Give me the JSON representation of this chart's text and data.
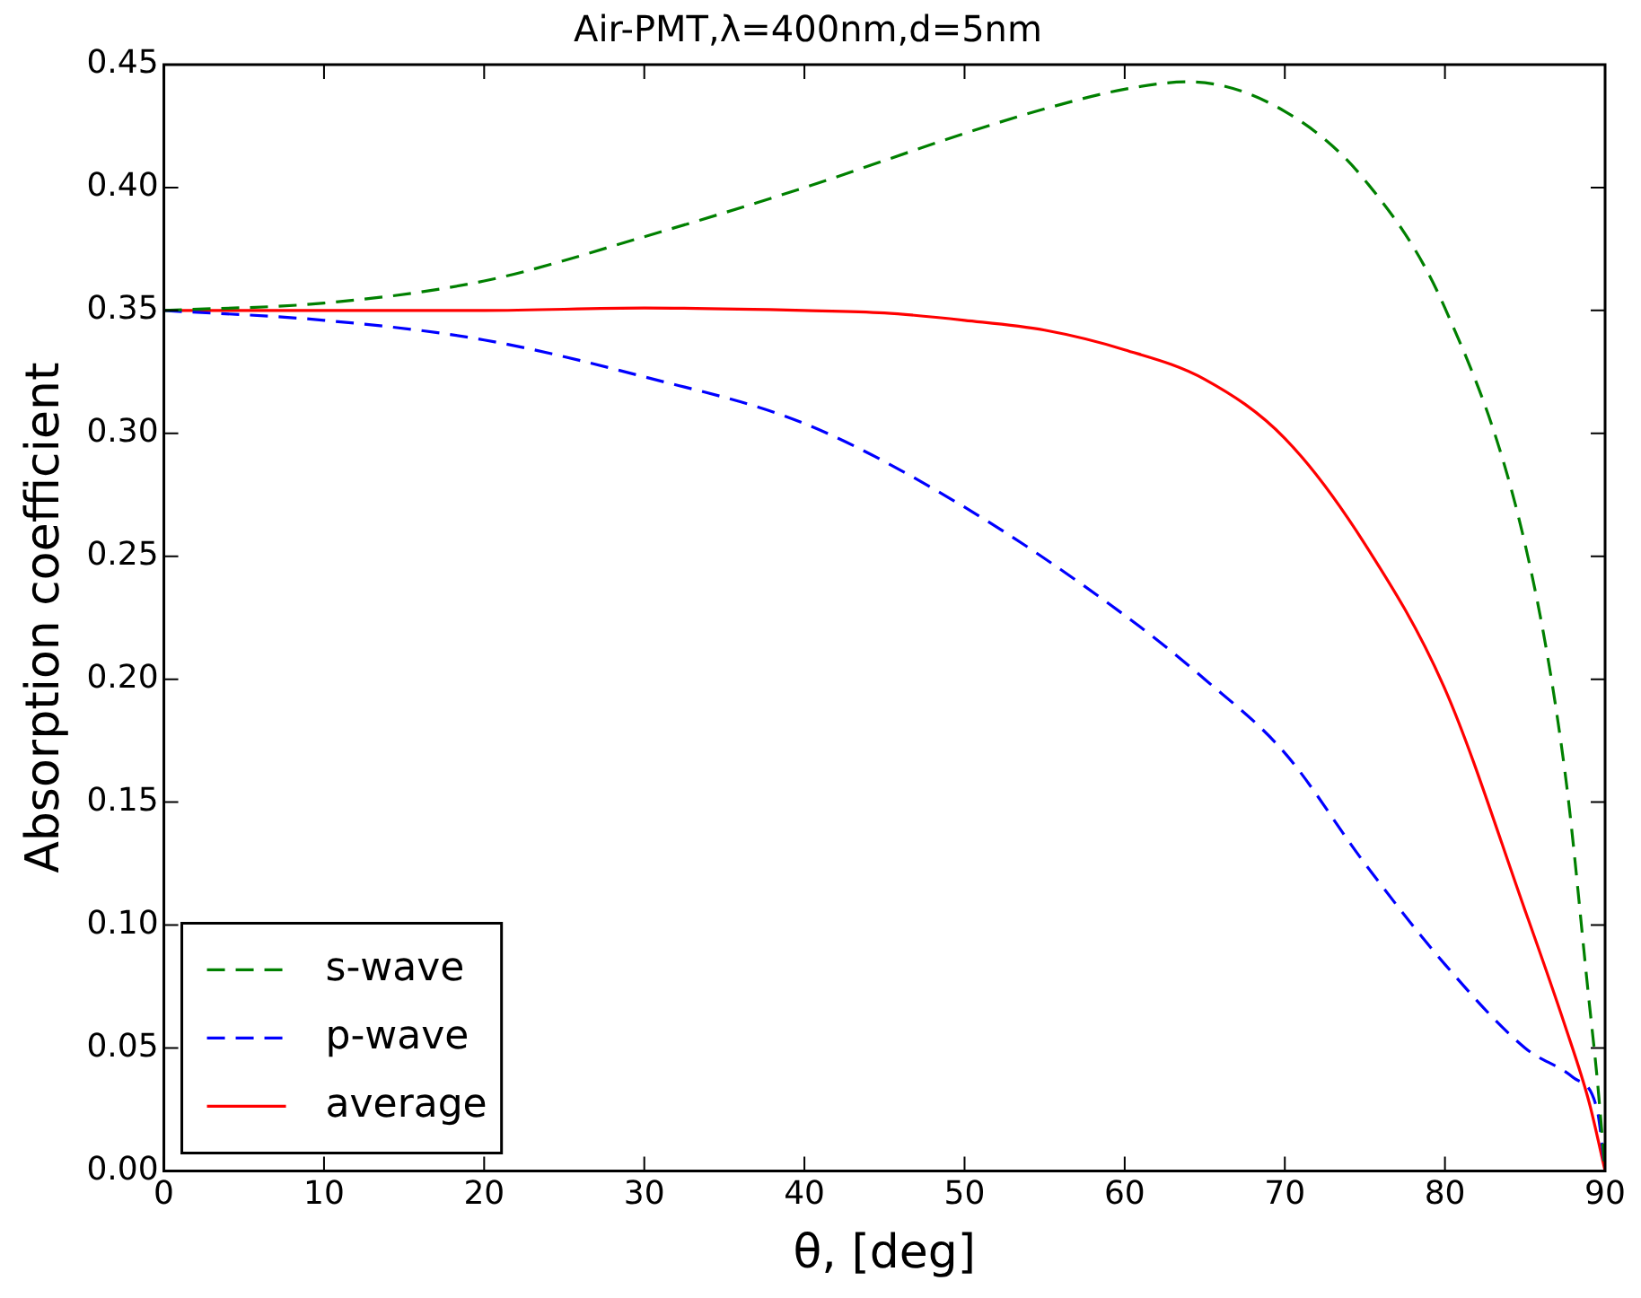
{
  "chart_data": {
    "type": "line",
    "title": "Air-PMT,λ=400nm,d=5nm",
    "xlabel": "θ, [deg]",
    "ylabel": "Absorption coefficient",
    "xlim": [
      0,
      90
    ],
    "xticks": [
      0,
      10,
      20,
      30,
      40,
      50,
      60,
      70,
      80,
      90
    ],
    "ylim": [
      0,
      0.45
    ],
    "yticks": [
      {
        "value": 0,
        "label": "0.00"
      },
      {
        "value": 0.05,
        "label": "0.05"
      },
      {
        "value": 0.1,
        "label": "0.10"
      },
      {
        "value": 0.15,
        "label": "0.15"
      },
      {
        "value": 0.2,
        "label": "0.20"
      },
      {
        "value": 0.25,
        "label": "0.25"
      },
      {
        "value": 0.3,
        "label": "0.30"
      },
      {
        "value": 0.35,
        "label": "0.35"
      },
      {
        "value": 0.4,
        "label": "0.40"
      },
      {
        "value": 0.45,
        "label": "0.45"
      }
    ],
    "grid": false,
    "legend": "bottom left",
    "marker": "none",
    "series": [
      {
        "name": "s-wave",
        "color": "#008000",
        "line_style": "dashed",
        "x": [
          0,
          10,
          20,
          30,
          40,
          50,
          55,
          60,
          64,
          70,
          75,
          80,
          85,
          87.5,
          89,
          89.5,
          90
        ],
        "values": [
          0.35,
          0.353,
          0.362,
          0.38,
          0.4,
          0.422,
          0.432,
          0.44,
          0.443,
          0.431,
          0.403,
          0.351,
          0.255,
          0.162,
          0.069,
          0.038,
          0
        ]
      },
      {
        "name": "p-wave",
        "color": "#0000ff",
        "line_style": "dashed",
        "x": [
          0,
          10,
          20,
          30,
          40,
          50,
          60,
          65,
          70,
          75,
          80,
          85,
          88,
          89.5,
          90
        ],
        "values": [
          0.35,
          0.346,
          0.338,
          0.323,
          0.304,
          0.27,
          0.226,
          0.2,
          0.17,
          0.125,
          0.084,
          0.05,
          0.038,
          0.025,
          0
        ]
      },
      {
        "name": "average",
        "color": "#ff0000",
        "line_style": "solid",
        "x": [
          0,
          10,
          20,
          30,
          40,
          45,
          50,
          55,
          60,
          65,
          70,
          75,
          80,
          85,
          87.5,
          89,
          90
        ],
        "values": [
          0.35,
          0.35,
          0.35,
          0.351,
          0.35,
          0.349,
          0.346,
          0.342,
          0.334,
          0.322,
          0.298,
          0.255,
          0.196,
          0.106,
          0.059,
          0.028,
          0
        ]
      }
    ]
  }
}
